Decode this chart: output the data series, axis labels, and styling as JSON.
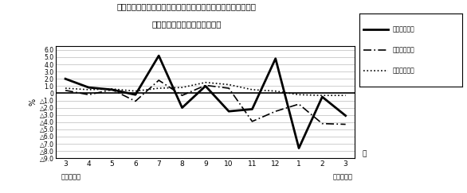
{
  "title_line1": "第４図　　賃金、労働時間、常用雇用指数対前年同月比の推移",
  "title_line2": "（規樯５人以上　調査産業計）",
  "ylabel": "%",
  "xlabel_end": "月",
  "xlabel_left": "平成２０年",
  "xlabel_right": "平成２１年",
  "x_labels": [
    "3",
    "4",
    "5",
    "6",
    "7",
    "8",
    "9",
    "10",
    "11",
    "12",
    "1",
    "2",
    "3"
  ],
  "ylim": [
    -9.0,
    6.5
  ],
  "yticks": [
    6.0,
    5.0,
    4.0,
    3.0,
    2.0,
    1.0,
    0.0,
    -1.0,
    -2.0,
    -3.0,
    -4.0,
    -5.0,
    -6.0,
    -7.0,
    -8.0,
    -9.0
  ],
  "series": {
    "label0": "現金給与総額",
    "label1": "総実労働時間",
    "label2": "常用雇用指数",
    "values0": [
      2.0,
      0.8,
      0.5,
      -0.2,
      5.2,
      -2.0,
      1.0,
      -2.5,
      -2.2,
      4.8,
      -7.6,
      -0.5,
      -3.1
    ],
    "values1": [
      0.4,
      -0.2,
      0.5,
      -1.1,
      1.8,
      -0.3,
      1.1,
      0.7,
      -3.9,
      -2.5,
      -1.5,
      -4.2,
      -4.3
    ],
    "values2": [
      0.7,
      0.5,
      0.6,
      0.3,
      0.7,
      0.8,
      1.5,
      1.2,
      0.5,
      0.3,
      -0.2,
      -0.3,
      -0.3
    ]
  },
  "background_color": "white",
  "plot_bg": "white"
}
